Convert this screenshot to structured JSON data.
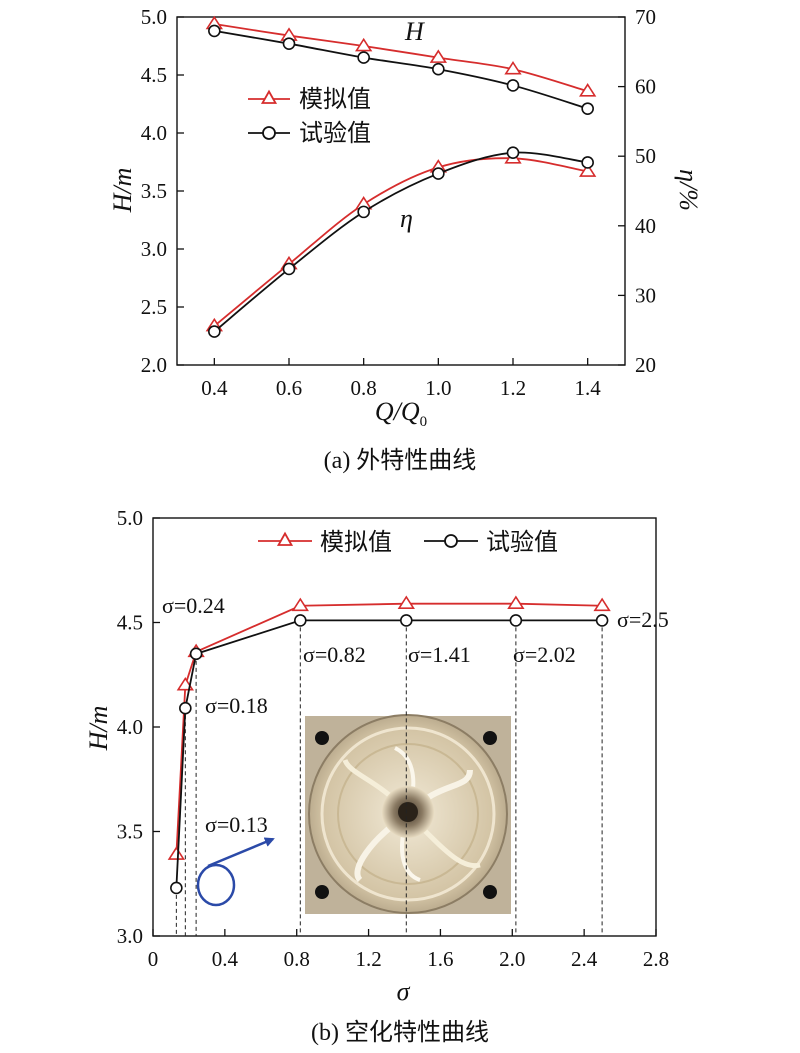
{
  "chart_data": [
    {
      "type": "line",
      "caption": "(a) 外特性曲线",
      "xlabel": "Q/Q0",
      "xlabel_main": "Q",
      "xlabel_sub": "0",
      "ylabel": "H/m",
      "y2label": "η/%",
      "xlim": [
        0.3,
        1.5
      ],
      "ylim": [
        2.0,
        5.0
      ],
      "y2lim": [
        20,
        70
      ],
      "x_ticks": [
        "0.4",
        "0.6",
        "0.8",
        "1.0",
        "1.2",
        "1.4"
      ],
      "y_ticks": [
        "2.0",
        "2.5",
        "3.0",
        "3.5",
        "4.0",
        "4.5",
        "5.0"
      ],
      "y2_ticks": [
        "20",
        "30",
        "40",
        "50",
        "60",
        "70"
      ],
      "curve_labels": {
        "H": "H",
        "eta": "η"
      },
      "legend": {
        "position": "center-left",
        "entries": [
          "模拟值",
          "试验值"
        ]
      },
      "colors": {
        "sim": "#d62d2d",
        "test": "#111111"
      },
      "x": [
        0.4,
        0.6,
        0.8,
        1.0,
        1.2,
        1.4
      ],
      "series": [
        {
          "name": "模拟值",
          "quantity": "H",
          "axis": "left",
          "values": [
            4.94,
            4.84,
            4.75,
            4.65,
            4.55,
            4.36
          ]
        },
        {
          "name": "试验值",
          "quantity": "H",
          "axis": "left",
          "values": [
            4.88,
            4.77,
            4.65,
            4.55,
            4.41,
            4.21
          ]
        },
        {
          "name": "模拟值",
          "quantity": "η",
          "axis": "right",
          "values": [
            25.6,
            34.5,
            43.1,
            48.4,
            49.7,
            47.8
          ]
        },
        {
          "name": "试验值",
          "quantity": "η",
          "axis": "right",
          "values": [
            24.8,
            33.8,
            42.0,
            47.5,
            50.5,
            49.1
          ]
        }
      ]
    },
    {
      "type": "line",
      "caption": "(b) 空化特性曲线",
      "xlabel": "σ",
      "ylabel": "H/m",
      "xlim": [
        0,
        2.8
      ],
      "ylim": [
        3.0,
        5.0
      ],
      "x_ticks": [
        "0",
        "0.4",
        "0.8",
        "1.2",
        "1.6",
        "2.0",
        "2.4",
        "2.8"
      ],
      "y_ticks": [
        "3.0",
        "3.5",
        "4.0",
        "4.5",
        "5.0"
      ],
      "legend": {
        "position": "top",
        "entries": [
          "模拟值",
          "试验值"
        ]
      },
      "colors": {
        "sim": "#d62d2d",
        "test": "#111111",
        "arrow": "#2b4aa8"
      },
      "series": [
        {
          "name": "模拟值",
          "x": [
            0.13,
            0.18,
            0.24,
            0.82,
            1.41,
            2.02,
            2.5
          ],
          "values": [
            3.39,
            4.2,
            4.36,
            4.58,
            4.59,
            4.59,
            4.58
          ]
        },
        {
          "name": "试验值",
          "x": [
            0.13,
            0.18,
            0.24,
            0.82,
            1.41,
            2.02,
            2.5
          ],
          "values": [
            3.23,
            4.09,
            4.35,
            4.51,
            4.51,
            4.51,
            4.51
          ]
        }
      ],
      "annotations": [
        {
          "text": "σ=0.24",
          "sigma": 0.24
        },
        {
          "text": "σ=0.18",
          "sigma": 0.18
        },
        {
          "text": "σ=0.13",
          "sigma": 0.13
        },
        {
          "text": "σ=0.82",
          "sigma": 0.82
        },
        {
          "text": "σ=1.41",
          "sigma": 1.41
        },
        {
          "text": "σ=2.02",
          "sigma": 2.02
        },
        {
          "text": "σ=2.5",
          "sigma": 2.5
        }
      ],
      "inset": "cavitation-photo"
    }
  ]
}
